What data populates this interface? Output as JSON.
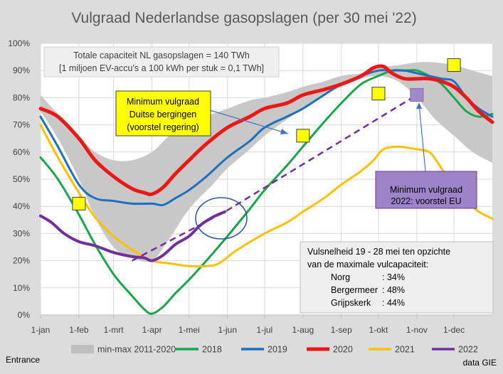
{
  "chart_data": {
    "type": "line",
    "title": "Vulgraad Nederlandse gasopslagen (per 30 mei '22)",
    "xlabel": "",
    "ylabel": "",
    "ylim": [
      0,
      100
    ],
    "y_ticks": [
      "0%",
      "10%",
      "20%",
      "30%",
      "40%",
      "50%",
      "60%",
      "70%",
      "80%",
      "90%",
      "100%"
    ],
    "x_ticks": [
      {
        "label": "1-jan",
        "day": 1
      },
      {
        "label": "1-feb",
        "day": 32
      },
      {
        "label": "1-mrt",
        "day": 60
      },
      {
        "label": "1-apr",
        "day": 91
      },
      {
        "label": "1-mei",
        "day": 121
      },
      {
        "label": "1-jun",
        "day": 152
      },
      {
        "label": "1-jul",
        "day": 182
      },
      {
        "label": "1-aug",
        "day": 213
      },
      {
        "label": "1-sep",
        "day": 244
      },
      {
        "label": "1-okt",
        "day": 274
      },
      {
        "label": "1-nov",
        "day": 305
      },
      {
        "label": "1-dec",
        "day": 335
      }
    ],
    "x_range": [
      1,
      366
    ],
    "grid": true,
    "legend_position": "bottom",
    "band": {
      "name": "min-max 2011-2020",
      "color": "#c8c8c8",
      "x": [
        1,
        15,
        32,
        45,
        60,
        75,
        91,
        105,
        121,
        140,
        152,
        170,
        182,
        200,
        213,
        230,
        244,
        260,
        274,
        290,
        305,
        320,
        335,
        350,
        366
      ],
      "low": [
        75,
        65,
        50,
        36,
        25,
        21,
        20,
        28,
        39,
        48,
        54,
        61,
        66,
        72,
        76,
        81,
        84,
        87,
        88,
        86,
        80,
        72,
        66,
        60,
        56
      ],
      "high": [
        81,
        74,
        66,
        60,
        57,
        57,
        60,
        66,
        71,
        74,
        76,
        79,
        80,
        82,
        84,
        86,
        88,
        89,
        91,
        92,
        93,
        93,
        92,
        90,
        88
      ]
    },
    "series": [
      {
        "name": "2018",
        "color": "#1aa64a",
        "width": 3,
        "x": [
          1,
          15,
          32,
          45,
          60,
          75,
          85,
          91,
          100,
          110,
          121,
          135,
          152,
          170,
          182,
          200,
          213,
          230,
          244,
          260,
          274,
          285,
          295,
          305,
          315,
          325,
          335,
          345,
          355,
          366
        ],
        "y": [
          58,
          50,
          37,
          26,
          15,
          7,
          2,
          0.5,
          3,
          8,
          13,
          20,
          29,
          39,
          46,
          55,
          62,
          71,
          78,
          85,
          88,
          90,
          90,
          90,
          88,
          85,
          80,
          75,
          73,
          74
        ]
      },
      {
        "name": "2019",
        "color": "#1f6fbf",
        "width": 3,
        "x": [
          1,
          15,
          32,
          45,
          60,
          75,
          91,
          100,
          110,
          121,
          135,
          152,
          170,
          182,
          200,
          213,
          230,
          244,
          260,
          274,
          285,
          295,
          305,
          315,
          325,
          335,
          345,
          355,
          366
        ],
        "y": [
          73,
          62,
          48,
          43,
          42,
          41,
          41,
          40.5,
          43,
          46,
          51,
          58,
          64,
          69,
          73,
          76,
          81,
          85,
          88,
          90,
          90,
          90,
          89,
          88,
          87,
          86,
          80,
          76,
          73
        ]
      },
      {
        "name": "2020",
        "color": "#f01616",
        "width": 5,
        "x": [
          1,
          15,
          32,
          45,
          60,
          75,
          85,
          91,
          100,
          110,
          121,
          135,
          152,
          170,
          182,
          200,
          213,
          230,
          244,
          260,
          270,
          278,
          285,
          295,
          305,
          315,
          325,
          335,
          345,
          355,
          366
        ],
        "y": [
          76,
          73,
          65,
          57,
          51,
          46.5,
          45,
          44.5,
          47,
          52,
          57,
          63,
          69,
          73,
          76,
          78,
          81,
          83,
          85,
          88,
          91,
          91.5,
          89,
          87,
          87,
          87,
          86,
          84,
          80,
          75,
          71
        ]
      },
      {
        "name": "2021",
        "color": "#ffc000",
        "width": 3,
        "x": [
          1,
          15,
          32,
          45,
          60,
          75,
          91,
          105,
          121,
          135,
          145,
          160,
          182,
          200,
          213,
          230,
          244,
          260,
          270,
          278,
          290,
          305,
          315,
          322,
          335,
          345,
          355,
          366
        ],
        "y": [
          70,
          58,
          45,
          36,
          29,
          24,
          20,
          19,
          18,
          18,
          19,
          24,
          30,
          34,
          38,
          43,
          48,
          53,
          57,
          61,
          62,
          61,
          60,
          56,
          47,
          42,
          38,
          35.5
        ]
      },
      {
        "name": "2022",
        "color": "#7030a0",
        "width": 4,
        "x": [
          1,
          10,
          20,
          32,
          45,
          60,
          75,
          85,
          91,
          100,
          110,
          121,
          130,
          140,
          150
        ],
        "y": [
          36.5,
          34,
          30,
          27,
          25.5,
          23,
          21.5,
          21,
          20,
          22,
          26,
          29,
          33,
          36,
          38
        ]
      }
    ],
    "projection": {
      "name": "2022 projectie",
      "color": "#7030a0",
      "x": [
        75,
        150,
        305
      ],
      "y": [
        20,
        38,
        81
      ]
    },
    "markers": {
      "fill": "#ffff00",
      "points": [
        {
          "x": 32,
          "y": 41
        },
        {
          "x": 213,
          "y": 66
        },
        {
          "x": 274,
          "y": 81.5
        },
        {
          "x": 335,
          "y": 92
        }
      ]
    },
    "eu_marker": {
      "x": 305,
      "y": 81,
      "fill": "#a08bc8"
    }
  },
  "info_box": {
    "line1": "Totale capaciteit NL gasopslagen = 140 TWh",
    "line2": "[1 miljoen EV-accu's a 100 kWh per stuk = 0,1 TWh]"
  },
  "callout_german": {
    "line1": "Minimum vulgraad",
    "line2": "Duitse bergingen",
    "line3": "(voorstel regering)",
    "fill": "#ffff00"
  },
  "callout_eu": {
    "line1": "Minimum vulgraad",
    "line2": "2022: voorstel EU",
    "fill": "#9e83c9"
  },
  "fill_rate_box": {
    "line1": "Vulsnelheid 19 - 28 mei ten opzichte",
    "line2": "van de maximale vulcapaciteit:",
    "rows": [
      {
        "name": "Norg",
        "value": ": 34%"
      },
      {
        "name": "Bergermeer",
        "value": ": 48%"
      },
      {
        "name": "Grijpskerk",
        "value": ": 44%"
      }
    ]
  },
  "legend": [
    {
      "label": "min-max 2011-2020",
      "color": "#bfbfbf",
      "kind": "band"
    },
    {
      "label": "2018",
      "color": "#1aa64a",
      "kind": "line"
    },
    {
      "label": "2019",
      "color": "#1f6fbf",
      "kind": "line"
    },
    {
      "label": "2020",
      "color": "#f01616",
      "kind": "line"
    },
    {
      "label": "2021",
      "color": "#ffc000",
      "kind": "line"
    },
    {
      "label": "2022",
      "color": "#7030a0",
      "kind": "line"
    }
  ],
  "footer": {
    "left": "Entrance",
    "right": "data GIE"
  }
}
